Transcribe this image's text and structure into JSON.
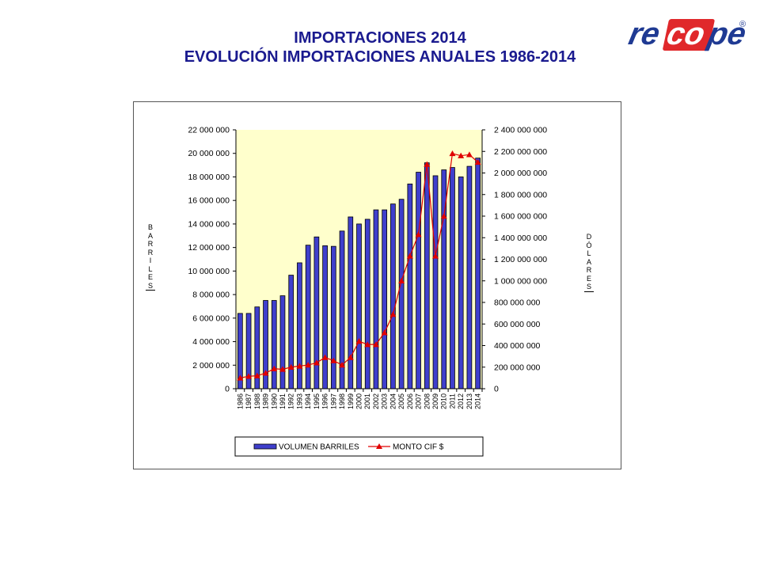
{
  "page": {
    "title_line1": "IMPORTACIONES 2014",
    "title_line2": "EVOLUCIÓN IMPORTACIONES ANUALES 1986-2014",
    "title_color": "#1a1a8f",
    "logo_text_left": "re",
    "logo_text_mid": "co",
    "logo_text_right": "pe",
    "logo_registered": "®",
    "logo_blue": "#1f3a93",
    "logo_red": "#e0282b"
  },
  "chart_data": {
    "type": "bar",
    "title": "",
    "xlabel": "",
    "ylabel": "BARRILES",
    "y2label": "DÓLARES",
    "categories": [
      "1986",
      "1987",
      "1988",
      "1989",
      "1990",
      "1991",
      "1992",
      "1993",
      "1994",
      "1995",
      "1996",
      "1997",
      "1998",
      "1999",
      "2000",
      "2001",
      "2002",
      "2003",
      "2004",
      "2005",
      "2006",
      "2007",
      "2008",
      "2009",
      "2010",
      "2011",
      "2012",
      "2013",
      "2014"
    ],
    "series": [
      {
        "name": "VOLUMEN BARRILES",
        "type": "bar",
        "axis": "left",
        "color": "#3f3fcc",
        "values": [
          6400000,
          6400000,
          6950000,
          7500000,
          7500000,
          7900000,
          9650000,
          10700000,
          12200000,
          12900000,
          12150000,
          12100000,
          13400000,
          14600000,
          14000000,
          14400000,
          15200000,
          15200000,
          15700000,
          16100000,
          17400000,
          18400000,
          19200000,
          18100000,
          18600000,
          18800000,
          18000000,
          18900000,
          19600000
        ]
      },
      {
        "name": "MONTO CIF $",
        "type": "line",
        "axis": "right",
        "color": "#e00000",
        "values": [
          100000000,
          115000000,
          120000000,
          145000000,
          185000000,
          180000000,
          200000000,
          210000000,
          220000000,
          240000000,
          290000000,
          260000000,
          220000000,
          290000000,
          440000000,
          410000000,
          410000000,
          520000000,
          690000000,
          1000000000,
          1230000000,
          1430000000,
          2080000000,
          1230000000,
          1600000000,
          2180000000,
          2160000000,
          2170000000,
          2100000000
        ]
      }
    ],
    "ylim": [
      0,
      22000000
    ],
    "y2lim": [
      0,
      2400000000
    ],
    "y_ticks": [
      "0",
      "2 000 000",
      "4 000 000",
      "6 000 000",
      "8 000 000",
      "10 000 000",
      "12 000 000",
      "14 000 000",
      "16 000 000",
      "18 000 000",
      "20 000 000",
      "22 000 000"
    ],
    "y2_ticks": [
      "0",
      "200 000 000",
      "400 000 000",
      "600 000 000",
      "800 000 000",
      "1 000 000 000",
      "1 200 000 000",
      "1 400 000 000",
      "1 600 000 000",
      "1 800 000 000",
      "2 000 000 000",
      "2 200 000 000",
      "2 400 000 000"
    ],
    "plot_background": "#ffffcc",
    "grid": false,
    "legend_position": "bottom"
  }
}
